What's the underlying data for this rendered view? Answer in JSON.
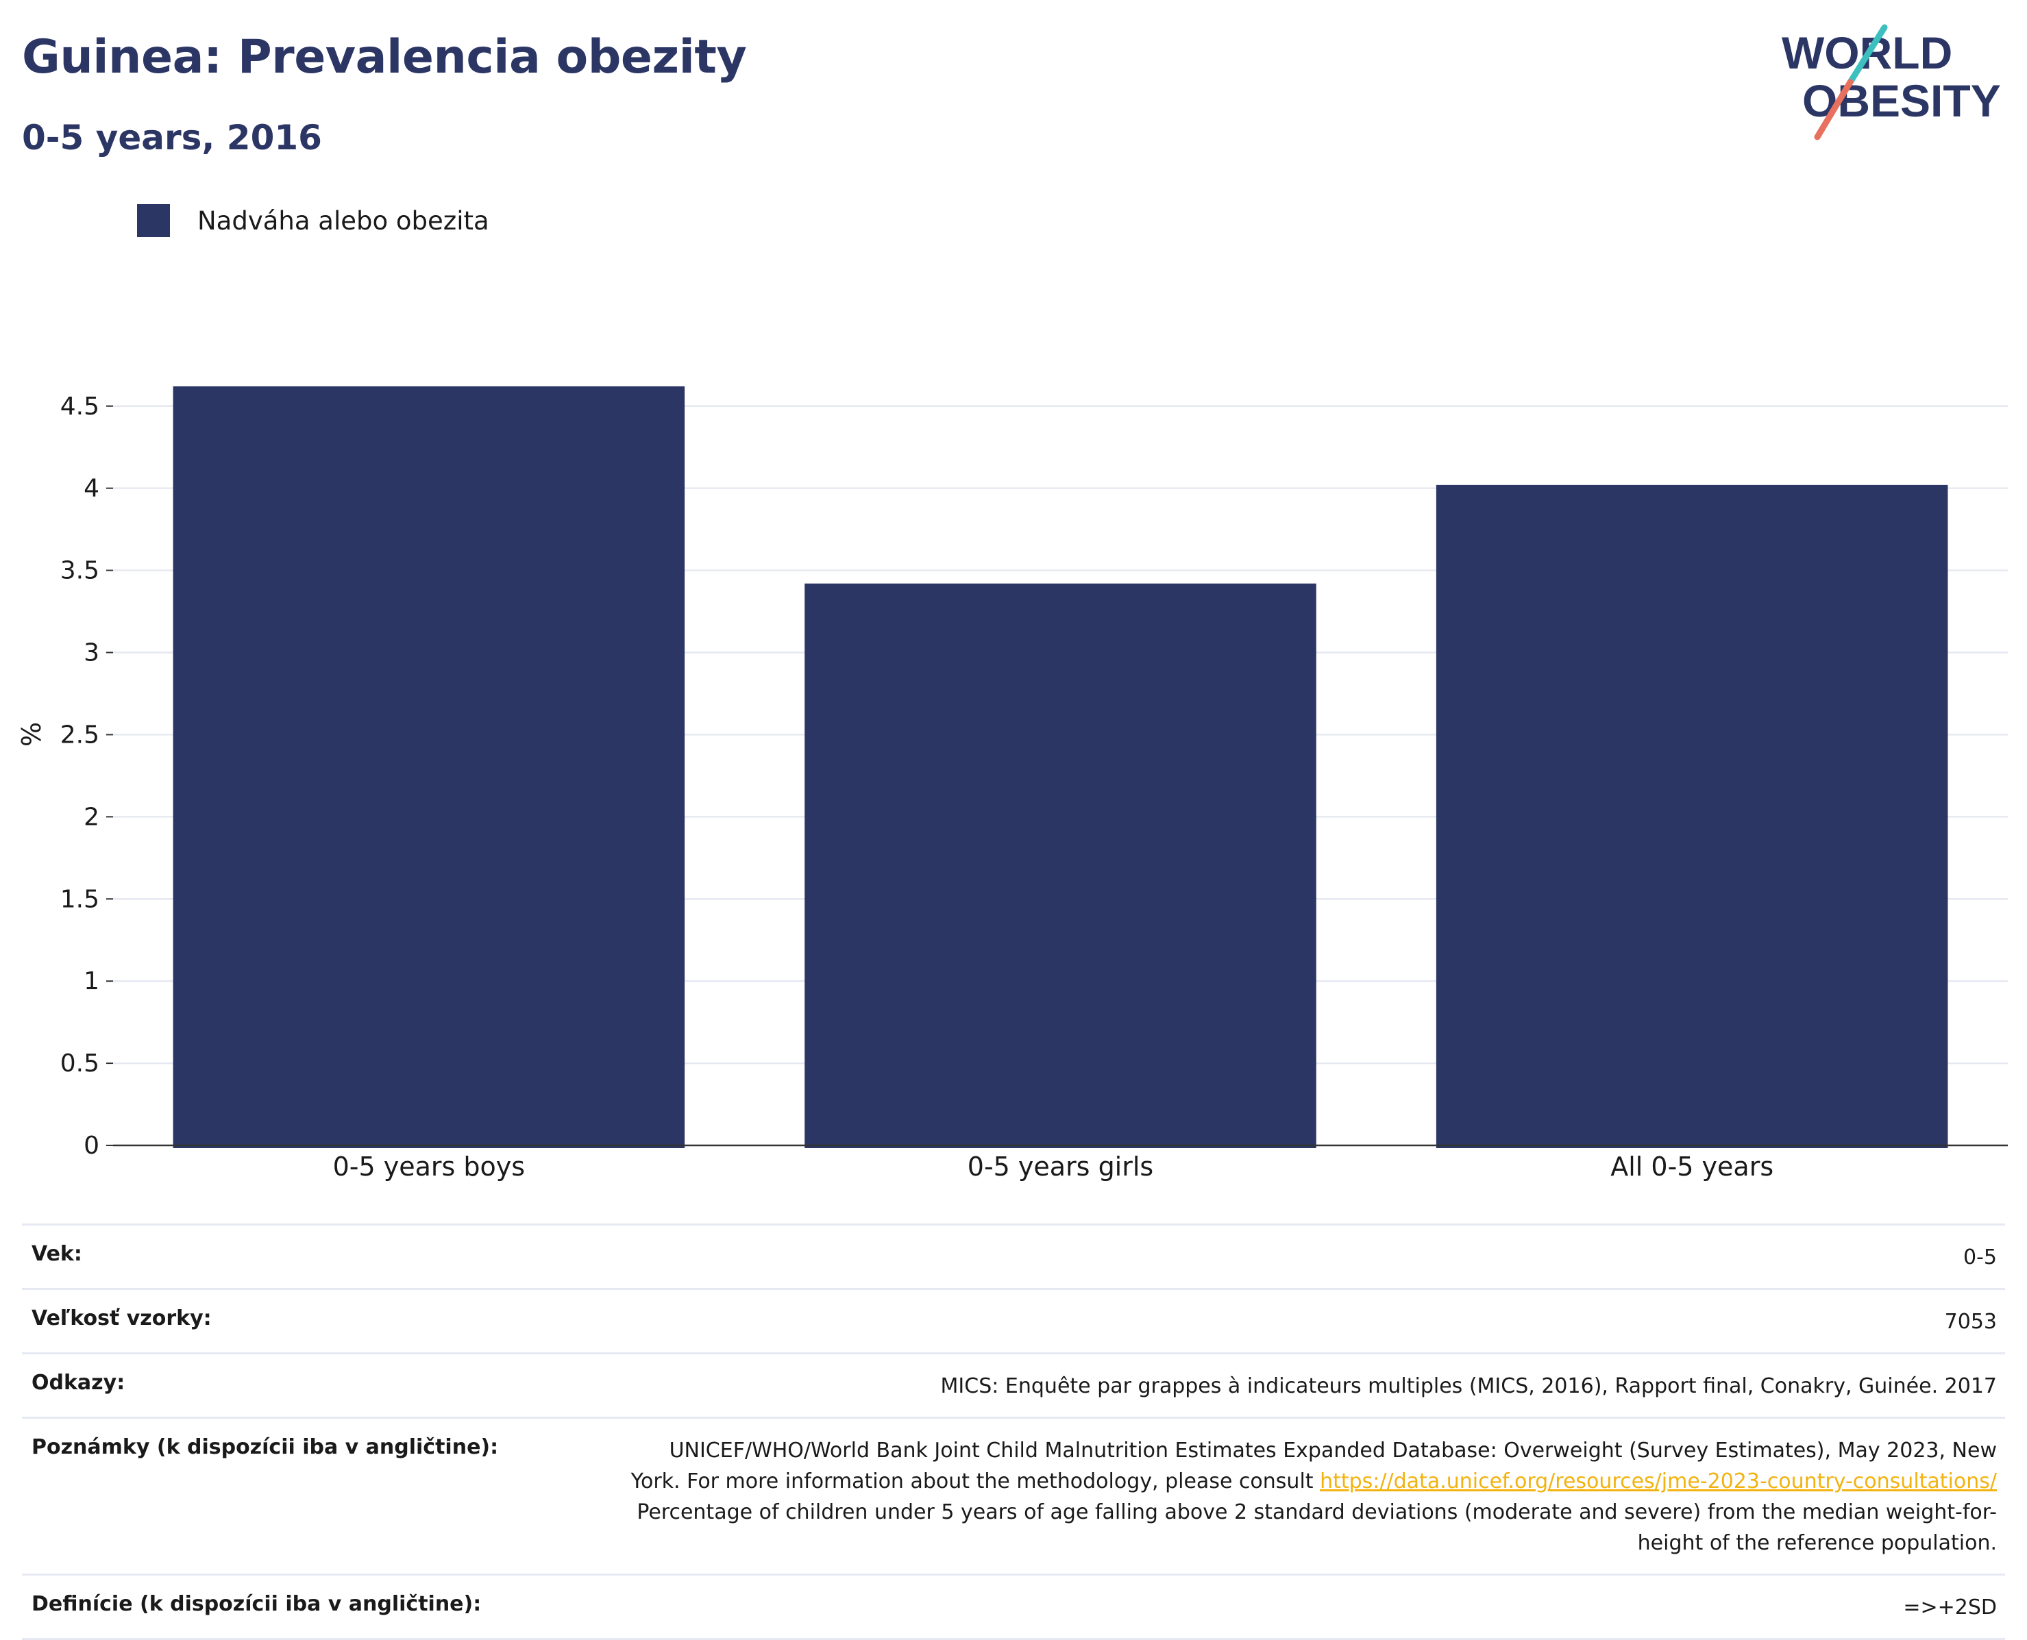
{
  "header": {
    "title": "Guinea: Prevalencia obezity",
    "subtitle": "0-5 years, 2016"
  },
  "logo": {
    "line1": "WORLD",
    "line2": "OBESITY",
    "accent_teal": "#3bbfbf",
    "accent_coral": "#e8705f",
    "text_color": "#2b3664"
  },
  "legend": {
    "label": "Nadváha alebo obezita",
    "color": "#2b3664"
  },
  "chart_data": {
    "type": "bar",
    "title": "Guinea: Prevalencia obezity",
    "subtitle": "0-5 years, 2016",
    "categories": [
      "0-5 years boys",
      "0-5 years girls",
      "All 0-5 years"
    ],
    "series": [
      {
        "name": "Nadváha alebo obezita",
        "values": [
          4.62,
          3.42,
          4.02
        ],
        "color": "#2b3664"
      }
    ],
    "xlabel": "",
    "ylabel": "%",
    "ylim": [
      0,
      4.72
    ],
    "yticks": [
      0,
      0.5,
      1,
      1.5,
      2,
      2.5,
      3,
      3.5,
      4,
      4.5
    ],
    "ytick_labels": [
      "0",
      "0.5",
      "1",
      "1.5",
      "2",
      "2.5",
      "3",
      "3.5",
      "4",
      "4.5"
    ],
    "grid": true,
    "legend_position": "top-left"
  },
  "info": {
    "age_label": "Vek:",
    "age_value": "0-5",
    "sample_label": "Veľkosť vzorky:",
    "sample_value": "7053",
    "refs_label": "Odkazy:",
    "refs_value": "MICS: Enquête par grappes à indicateurs multiples (MICS, 2016), Rapport final, Conakry, Guinée. 2017",
    "notes_label": "Poznámky (k dispozícii iba v angličtine):",
    "notes_line1": "UNICEF/WHO/World Bank Joint Child Malnutrition Estimates Expanded Database: Overweight (Survey Estimates), May 2023, New",
    "notes_line2_pre": "York. For more information about the methodology, please consult ",
    "notes_link": "https://data.unicef.org/resources/jme-2023-country-consultations/",
    "notes_line3": "Percentage of children under 5 years of age falling above 2 standard deviations (moderate and severe) from the median weight-for-",
    "notes_line4": "height of the reference population.",
    "defs_label": "Definície (k dispozícii iba v angličtine):",
    "defs_value": "=>+2SD"
  }
}
